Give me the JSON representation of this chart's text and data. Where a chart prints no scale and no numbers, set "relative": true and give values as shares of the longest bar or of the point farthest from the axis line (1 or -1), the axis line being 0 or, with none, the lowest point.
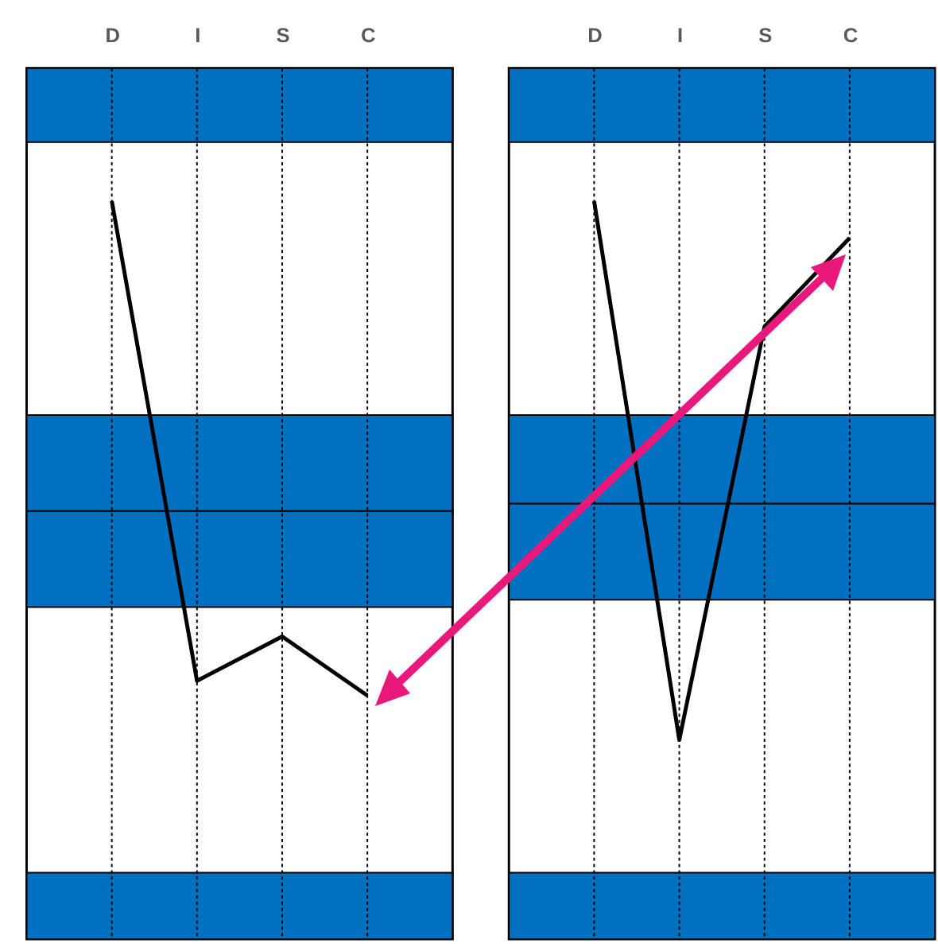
{
  "chart_data": [
    {
      "type": "line",
      "categories": [
        "D",
        "I",
        "S",
        "C"
      ],
      "relative": true,
      "grid": "x",
      "tick_labels": "x",
      "series": [
        {
          "color": "#000000",
          "values": [
            1,
            0.35,
            0.41,
            0.33
          ]
        }
      ],
      "bands": [
        {
          "axis": "y",
          "from": 1.08,
          "to": 1.18,
          "color": "#0070c0"
        },
        {
          "axis": "y",
          "from": 0.58,
          "to": 0.71,
          "color": "#0070c0"
        },
        {
          "axis": "y",
          "from": 0.45,
          "to": 0.58,
          "color": "#0070c0"
        },
        {
          "axis": "y",
          "from": 0,
          "to": 0.09,
          "color": "#0070c0"
        }
      ]
    },
    {
      "type": "line",
      "categories": [
        "D",
        "I",
        "S",
        "C"
      ],
      "relative": true,
      "grid": "x",
      "tick_labels": "x",
      "series": [
        {
          "color": "#000000",
          "values": [
            1,
            0.27,
            0.83,
            0.95
          ]
        }
      ],
      "bands": [
        {
          "axis": "y",
          "from": 1.08,
          "to": 1.18,
          "color": "#0070c0"
        },
        {
          "axis": "y",
          "from": 0.59,
          "to": 0.71,
          "color": "#0070c0"
        },
        {
          "axis": "y",
          "from": 0.46,
          "to": 0.59,
          "color": "#0070c0"
        },
        {
          "axis": "y",
          "from": 0,
          "to": 0.09,
          "color": "#0070c0"
        }
      ]
    }
  ]
}
